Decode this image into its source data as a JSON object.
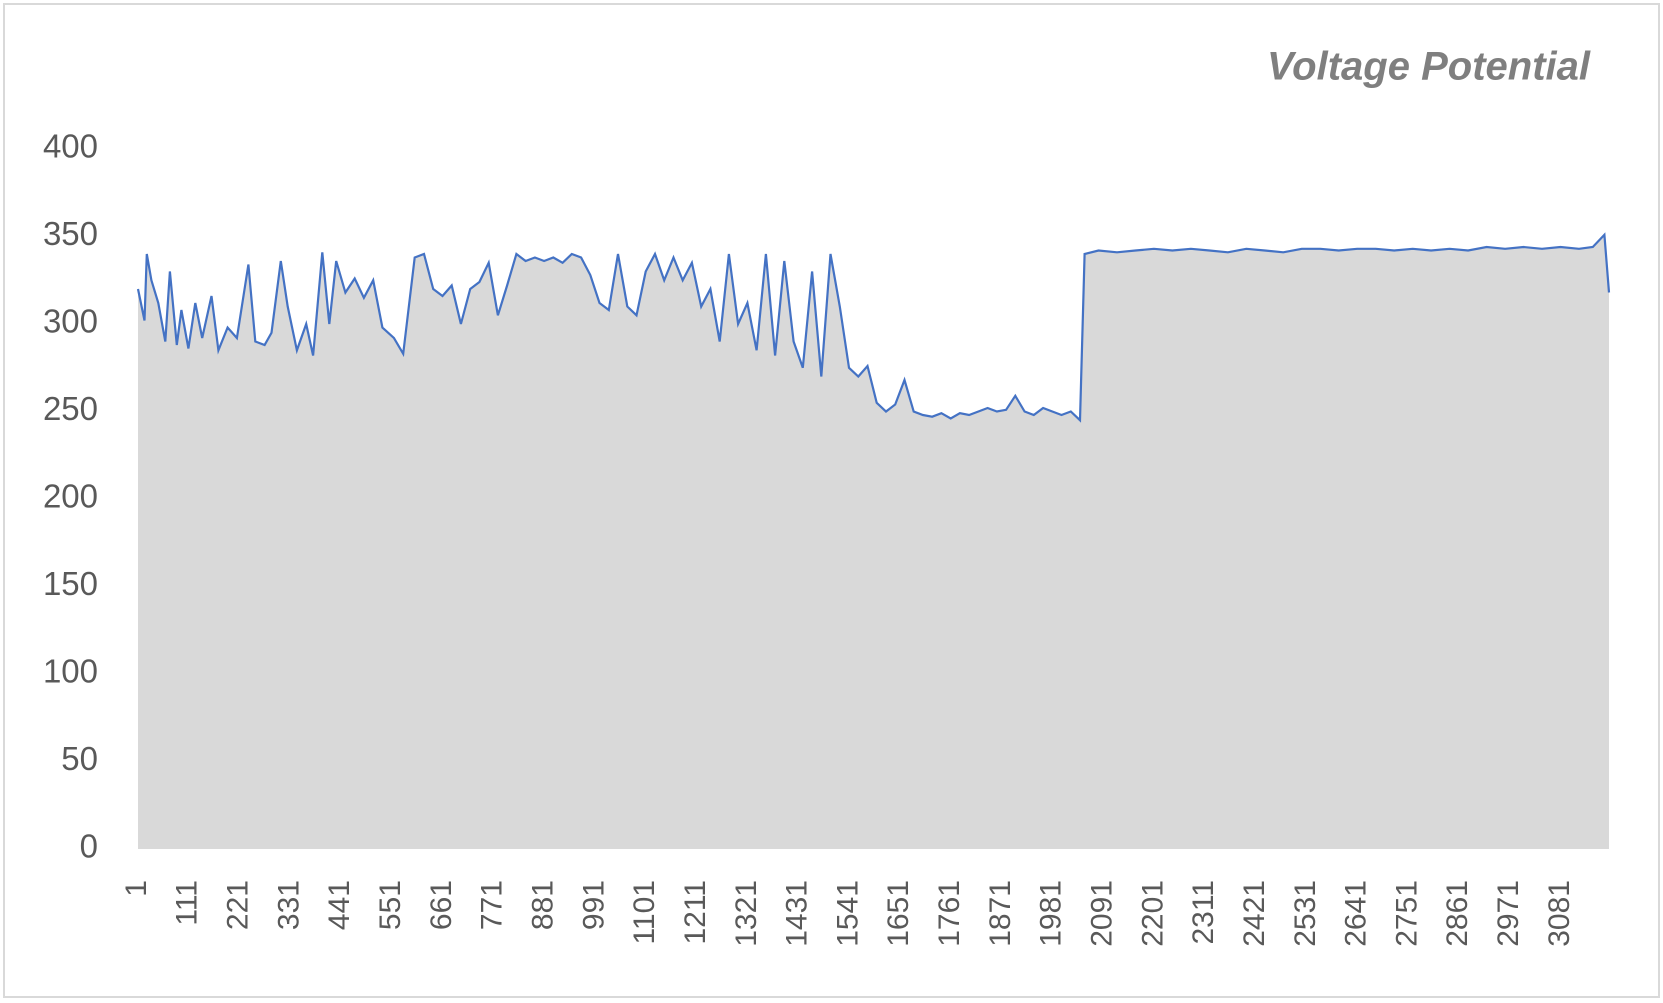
{
  "chart_data": {
    "type": "area",
    "title": "Voltage Potential",
    "x": [
      1,
      15,
      20,
      30,
      45,
      60,
      70,
      85,
      95,
      110,
      125,
      140,
      160,
      175,
      195,
      215,
      240,
      255,
      275,
      290,
      310,
      325,
      345,
      365,
      380,
      400,
      415,
      430,
      450,
      470,
      490,
      510,
      530,
      555,
      575,
      600,
      620,
      640,
      660,
      680,
      700,
      720,
      740,
      760,
      780,
      800,
      820,
      840,
      860,
      880,
      900,
      920,
      940,
      960,
      980,
      1000,
      1020,
      1040,
      1060,
      1080,
      1100,
      1120,
      1140,
      1160,
      1180,
      1200,
      1220,
      1240,
      1260,
      1280,
      1300,
      1320,
      1340,
      1360,
      1380,
      1400,
      1420,
      1440,
      1460,
      1480,
      1500,
      1520,
      1540,
      1560,
      1580,
      1600,
      1620,
      1640,
      1660,
      1680,
      1700,
      1720,
      1740,
      1760,
      1780,
      1800,
      1820,
      1840,
      1860,
      1880,
      1900,
      1920,
      1940,
      1960,
      1980,
      2000,
      2020,
      2040,
      2050,
      2080,
      2120,
      2160,
      2200,
      2240,
      2280,
      2320,
      2360,
      2400,
      2440,
      2480,
      2520,
      2560,
      2600,
      2640,
      2680,
      2720,
      2760,
      2800,
      2840,
      2880,
      2920,
      2960,
      3000,
      3040,
      3080,
      3120,
      3150,
      3175,
      3185
    ],
    "values": [
      320,
      302,
      340,
      325,
      312,
      290,
      330,
      288,
      308,
      286,
      312,
      292,
      316,
      285,
      298,
      292,
      334,
      290,
      288,
      295,
      336,
      310,
      285,
      300,
      282,
      341,
      300,
      336,
      318,
      326,
      315,
      325,
      298,
      292,
      283,
      338,
      340,
      320,
      316,
      322,
      300,
      320,
      324,
      335,
      305,
      322,
      340,
      336,
      338,
      336,
      338,
      335,
      340,
      338,
      328,
      312,
      308,
      340,
      310,
      305,
      330,
      340,
      325,
      338,
      325,
      335,
      310,
      320,
      290,
      340,
      300,
      312,
      285,
      340,
      282,
      336,
      290,
      275,
      330,
      270,
      340,
      310,
      275,
      270,
      276,
      255,
      250,
      254,
      268,
      250,
      248,
      247,
      249,
      246,
      249,
      248,
      250,
      252,
      250,
      251,
      259,
      250,
      248,
      252,
      250,
      248,
      250,
      245,
      340,
      342,
      341,
      342,
      343,
      342,
      343,
      342,
      341,
      343,
      342,
      341,
      343,
      343,
      342,
      343,
      343,
      342,
      343,
      342,
      343,
      342,
      344,
      343,
      344,
      343,
      344,
      343,
      344,
      351,
      318
    ],
    "color": "#4472c4",
    "fill_color": "#d9d9d9",
    "xlim": [
      1,
      3185
    ],
    "xticks": [
      1,
      111,
      221,
      331,
      441,
      551,
      661,
      771,
      881,
      991,
      1101,
      1211,
      1321,
      1431,
      1541,
      1651,
      1761,
      1871,
      1981,
      2091,
      2201,
      2311,
      2421,
      2531,
      2641,
      2751,
      2861,
      2971,
      3081
    ],
    "ylim": [
      0,
      400
    ],
    "yticks": [
      0,
      50,
      100,
      150,
      200,
      250,
      300,
      350,
      400
    ],
    "grid": false
  }
}
